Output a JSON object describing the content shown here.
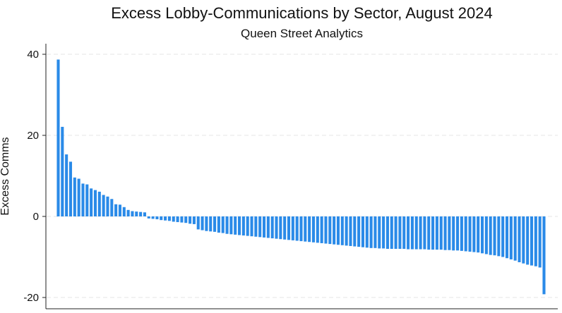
{
  "chart_data": {
    "type": "bar",
    "title": "Excess Lobby-Communications by Sector, August 2024",
    "subtitle": "Queen Street Analytics",
    "xlabel": "",
    "ylabel": "Excess Comms",
    "ylim": [
      -21,
      44
    ],
    "yticks": [
      40,
      20,
      0,
      -20
    ],
    "ytick_labels": [
      "40",
      "20",
      "0",
      "-20"
    ],
    "grid": true,
    "bar_color": "#2a8ae8",
    "values": [
      38.7,
      22.1,
      15.3,
      13.5,
      9.6,
      9.3,
      8.1,
      7.9,
      6.9,
      6.5,
      6.1,
      5.3,
      4.9,
      4.3,
      3.0,
      2.9,
      2.3,
      1.6,
      1.3,
      1.2,
      1.1,
      1.0,
      -0.5,
      -0.6,
      -0.7,
      -0.9,
      -1.0,
      -1.1,
      -1.3,
      -1.4,
      -1.5,
      -1.6,
      -1.8,
      -1.9,
      -3.2,
      -3.4,
      -3.6,
      -3.7,
      -3.8,
      -4.0,
      -4.1,
      -4.3,
      -4.4,
      -4.5,
      -4.6,
      -4.7,
      -4.8,
      -4.9,
      -5.0,
      -5.1,
      -5.2,
      -5.3,
      -5.4,
      -5.5,
      -5.6,
      -5.7,
      -5.8,
      -5.9,
      -6.0,
      -6.1,
      -6.2,
      -6.3,
      -6.4,
      -6.5,
      -6.6,
      -6.7,
      -6.8,
      -6.9,
      -7.0,
      -7.1,
      -7.2,
      -7.3,
      -7.4,
      -7.5,
      -7.6,
      -7.7,
      -7.8,
      -7.8,
      -7.9,
      -7.9,
      -8.0,
      -8.0,
      -8.0,
      -8.0,
      -8.0,
      -8.1,
      -8.1,
      -8.1,
      -8.1,
      -8.1,
      -8.2,
      -8.2,
      -8.2,
      -8.2,
      -8.3,
      -8.3,
      -8.4,
      -8.4,
      -8.5,
      -8.6,
      -8.7,
      -8.8,
      -8.9,
      -9.1,
      -9.3,
      -9.5,
      -9.6,
      -9.8,
      -10.0,
      -10.3,
      -10.6,
      -10.9,
      -11.3,
      -11.6,
      -11.9,
      -12.1,
      -12.3,
      -12.6,
      -19.2
    ]
  }
}
